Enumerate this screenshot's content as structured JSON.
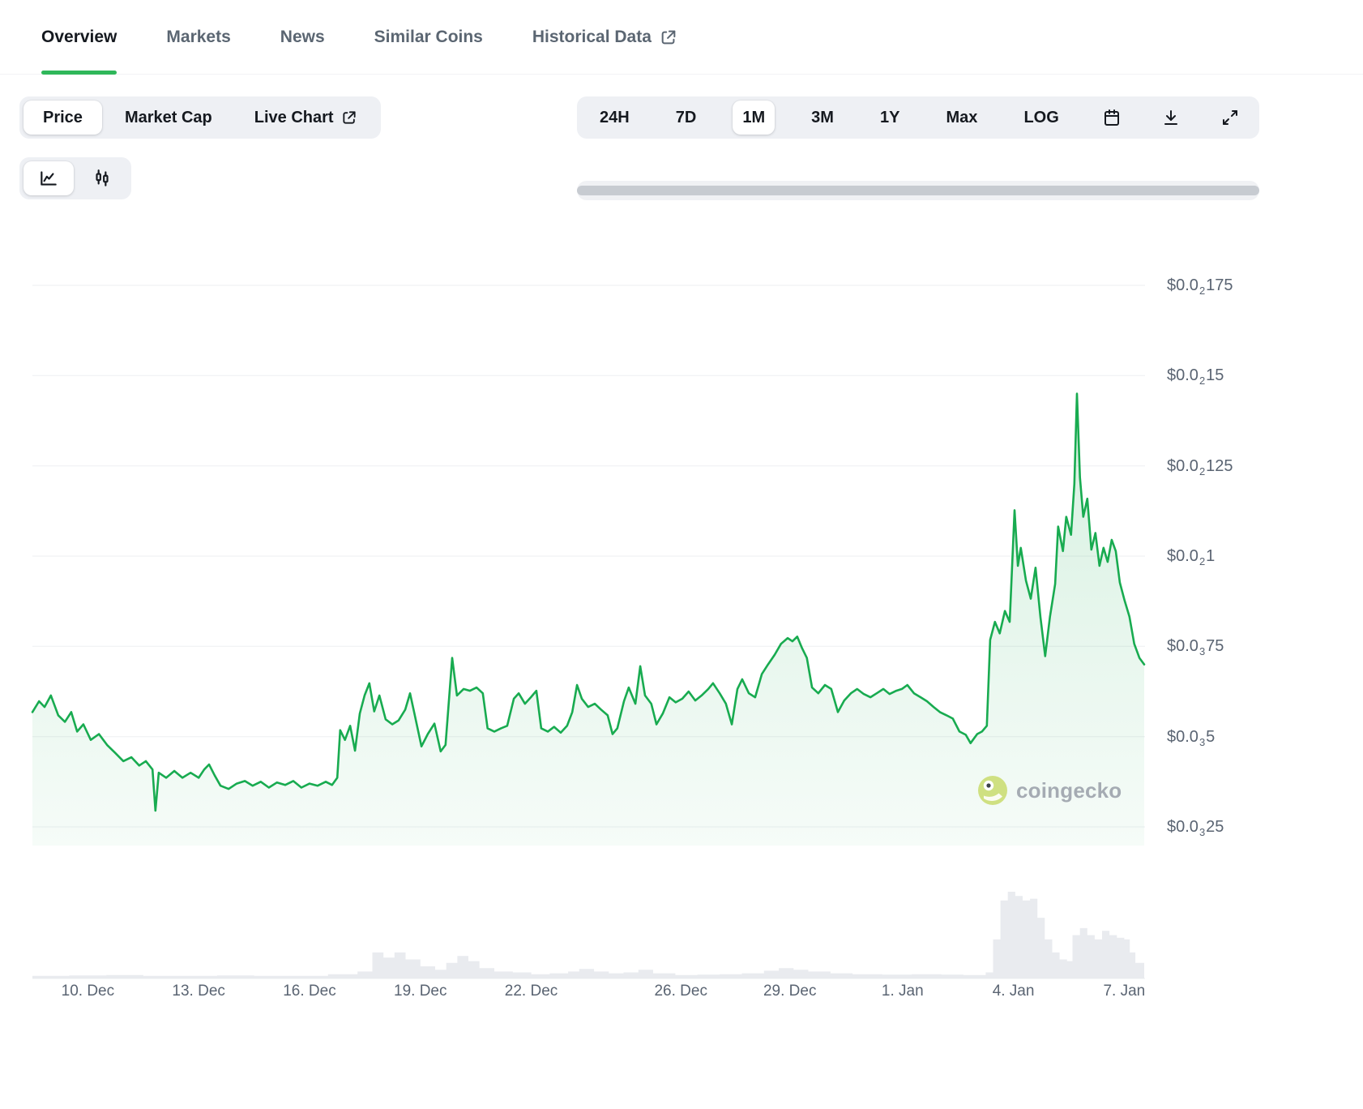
{
  "tabs": [
    {
      "label": "Overview",
      "active": true
    },
    {
      "label": "Markets",
      "active": false
    },
    {
      "label": "News",
      "active": false
    },
    {
      "label": "Similar Coins",
      "active": false
    },
    {
      "label": "Historical Data",
      "active": false,
      "external_link": true
    }
  ],
  "toolbar": {
    "metric_buttons": [
      {
        "label": "Price",
        "active": true
      },
      {
        "label": "Market Cap",
        "active": false
      },
      {
        "label": "Live Chart",
        "active": false,
        "external_link": true
      }
    ],
    "range_buttons": [
      "24H",
      "7D",
      "1M",
      "3M",
      "1Y",
      "Max",
      "LOG"
    ],
    "active_range": "1M",
    "icon_buttons": [
      "calendar",
      "download",
      "fullscreen"
    ]
  },
  "chart_type_toggle": {
    "options": [
      "line-chart",
      "candlestick-chart"
    ],
    "active": "line-chart"
  },
  "watermark": {
    "text": "coingecko"
  },
  "colors": {
    "accent_green": "#2fb75a",
    "line_green": "#18ab50",
    "gridline": "#edeff2",
    "axis_label": "#5a6472",
    "volume": "#e9ebef",
    "toolbar_bg": "#eef0f4",
    "active_pill": "#ffffff",
    "text_dark": "#15191f",
    "text_muted": "#5b6672",
    "scrollbar_thumb": "#c7cbd1",
    "scrollbar_track": "#f0f1f4",
    "watermark": "#a5abb3",
    "tab_border": "#f2f3f5"
  },
  "chart_data": {
    "type": "line",
    "title": "",
    "selected_range": "1M",
    "scale": "linear",
    "grid": "horizontal",
    "legend": "none",
    "x_domain_days": 30.09,
    "y_domain": [
      0.00025,
      0.00175
    ],
    "y_ticks": [
      {
        "value": 0.00175,
        "prefix": "$0.0",
        "sub": "2",
        "digits": "175"
      },
      {
        "value": 0.0015,
        "prefix": "$0.0",
        "sub": "2",
        "digits": "15"
      },
      {
        "value": 0.00125,
        "prefix": "$0.0",
        "sub": "2",
        "digits": "125"
      },
      {
        "value": 0.001,
        "prefix": "$0.0",
        "sub": "2",
        "digits": "1"
      },
      {
        "value": 0.00075,
        "prefix": "$0.0",
        "sub": "3",
        "digits": "75"
      },
      {
        "value": 0.0005,
        "prefix": "$0.0",
        "sub": "3",
        "digits": "5"
      },
      {
        "value": 0.00025,
        "prefix": "$0.0",
        "sub": "3",
        "digits": "25"
      }
    ],
    "x_ticks": [
      {
        "label": "10. Dec",
        "day": 1.5
      },
      {
        "label": "13. Dec",
        "day": 4.5
      },
      {
        "label": "16. Dec",
        "day": 7.5
      },
      {
        "label": "19. Dec",
        "day": 10.5
      },
      {
        "label": "22. Dec",
        "day": 13.5
      },
      {
        "label": "26. Dec",
        "day": 17.55
      },
      {
        "label": "29. Dec",
        "day": 20.5
      },
      {
        "label": "1. Jan",
        "day": 23.55
      },
      {
        "label": "4. Jan",
        "day": 26.55
      },
      {
        "label": "7. Jan",
        "day": 29.55
      }
    ],
    "series": [
      {
        "name": "Price (USD)",
        "points": [
          [
            0,
            0.000568
          ],
          [
            0.18,
            0.000598
          ],
          [
            0.33,
            0.000582
          ],
          [
            0.5,
            0.000614
          ],
          [
            0.7,
            0.000559
          ],
          [
            0.88,
            0.000541
          ],
          [
            1.05,
            0.000568
          ],
          [
            1.21,
            0.000514
          ],
          [
            1.38,
            0.000534
          ],
          [
            1.58,
            0.000491
          ],
          [
            1.8,
            0.000507
          ],
          [
            2.02,
            0.000477
          ],
          [
            2.24,
            0.000455
          ],
          [
            2.46,
            0.000432
          ],
          [
            2.68,
            0.000443
          ],
          [
            2.89,
            0.00042
          ],
          [
            3.07,
            0.000432
          ],
          [
            3.25,
            0.000409
          ],
          [
            3.33,
            0.000295
          ],
          [
            3.42,
            0.0004
          ],
          [
            3.62,
            0.000386
          ],
          [
            3.84,
            0.000405
          ],
          [
            4.06,
            0.000386
          ],
          [
            4.28,
            0.0004
          ],
          [
            4.5,
            0.000386
          ],
          [
            4.65,
            0.000409
          ],
          [
            4.78,
            0.000423
          ],
          [
            4.93,
            0.000393
          ],
          [
            5.09,
            0.000364
          ],
          [
            5.31,
            0.000355
          ],
          [
            5.53,
            0.00037
          ],
          [
            5.75,
            0.000377
          ],
          [
            5.96,
            0.000364
          ],
          [
            6.18,
            0.000375
          ],
          [
            6.4,
            0.000359
          ],
          [
            6.62,
            0.000373
          ],
          [
            6.84,
            0.000366
          ],
          [
            7.06,
            0.000377
          ],
          [
            7.28,
            0.000359
          ],
          [
            7.5,
            0.00037
          ],
          [
            7.72,
            0.000364
          ],
          [
            7.94,
            0.000375
          ],
          [
            8.11,
            0.000366
          ],
          [
            8.25,
            0.000386
          ],
          [
            8.33,
            0.000518
          ],
          [
            8.46,
            0.000491
          ],
          [
            8.6,
            0.00053
          ],
          [
            8.73,
            0.000461
          ],
          [
            8.86,
            0.000564
          ],
          [
            8.99,
            0.000614
          ],
          [
            9.12,
            0.000648
          ],
          [
            9.25,
            0.00057
          ],
          [
            9.39,
            0.000614
          ],
          [
            9.56,
            0.000548
          ],
          [
            9.74,
            0.000534
          ],
          [
            9.91,
            0.000545
          ],
          [
            10.09,
            0.000575
          ],
          [
            10.22,
            0.00062
          ],
          [
            10.35,
            0.000559
          ],
          [
            10.53,
            0.000473
          ],
          [
            10.7,
            0.000507
          ],
          [
            10.88,
            0.000536
          ],
          [
            11.05,
            0.000459
          ],
          [
            11.18,
            0.000477
          ],
          [
            11.36,
            0.000718
          ],
          [
            11.49,
            0.000614
          ],
          [
            11.67,
            0.000632
          ],
          [
            11.84,
            0.000627
          ],
          [
            12.02,
            0.000636
          ],
          [
            12.19,
            0.00062
          ],
          [
            12.32,
            0.000523
          ],
          [
            12.5,
            0.000514
          ],
          [
            12.68,
            0.000523
          ],
          [
            12.85,
            0.00053
          ],
          [
            13.03,
            0.000605
          ],
          [
            13.16,
            0.00062
          ],
          [
            13.33,
            0.000591
          ],
          [
            13.49,
            0.000609
          ],
          [
            13.64,
            0.000627
          ],
          [
            13.77,
            0.000523
          ],
          [
            13.95,
            0.000514
          ],
          [
            14.12,
            0.000527
          ],
          [
            14.3,
            0.000511
          ],
          [
            14.47,
            0.00053
          ],
          [
            14.61,
            0.000568
          ],
          [
            14.74,
            0.000643
          ],
          [
            14.87,
            0.000605
          ],
          [
            15.04,
            0.000582
          ],
          [
            15.22,
            0.000591
          ],
          [
            15.39,
            0.000575
          ],
          [
            15.57,
            0.000559
          ],
          [
            15.7,
            0.000507
          ],
          [
            15.83,
            0.000523
          ],
          [
            16.01,
            0.000598
          ],
          [
            16.14,
            0.000636
          ],
          [
            16.32,
            0.000591
          ],
          [
            16.45,
            0.000695
          ],
          [
            16.58,
            0.000614
          ],
          [
            16.75,
            0.000591
          ],
          [
            16.89,
            0.000534
          ],
          [
            17.06,
            0.000564
          ],
          [
            17.24,
            0.000609
          ],
          [
            17.41,
            0.000595
          ],
          [
            17.59,
            0.000605
          ],
          [
            17.76,
            0.000625
          ],
          [
            17.94,
            0.0006
          ],
          [
            18.11,
            0.000614
          ],
          [
            18.29,
            0.000632
          ],
          [
            18.42,
            0.000648
          ],
          [
            18.6,
            0.00062
          ],
          [
            18.77,
            0.000591
          ],
          [
            18.93,
            0.000534
          ],
          [
            19.08,
            0.000632
          ],
          [
            19.21,
            0.000659
          ],
          [
            19.39,
            0.00062
          ],
          [
            19.56,
            0.000609
          ],
          [
            19.74,
            0.000673
          ],
          [
            19.91,
            0.0007
          ],
          [
            20.09,
            0.000727
          ],
          [
            20.26,
            0.000757
          ],
          [
            20.44,
            0.000773
          ],
          [
            20.57,
            0.000764
          ],
          [
            20.7,
            0.000777
          ],
          [
            20.83,
            0.000745
          ],
          [
            20.96,
            0.000718
          ],
          [
            21.1,
            0.000636
          ],
          [
            21.27,
            0.00062
          ],
          [
            21.45,
            0.000643
          ],
          [
            21.62,
            0.000632
          ],
          [
            21.8,
            0.000568
          ],
          [
            21.97,
            0.0006
          ],
          [
            22.15,
            0.00062
          ],
          [
            22.32,
            0.000632
          ],
          [
            22.5,
            0.000618
          ],
          [
            22.68,
            0.000609
          ],
          [
            22.85,
            0.00062
          ],
          [
            23.03,
            0.000632
          ],
          [
            23.2,
            0.000618
          ],
          [
            23.38,
            0.000627
          ],
          [
            23.53,
            0.000632
          ],
          [
            23.68,
            0.000643
          ],
          [
            23.86,
            0.00062
          ],
          [
            24.04,
            0.000609
          ],
          [
            24.21,
            0.000598
          ],
          [
            24.39,
            0.000582
          ],
          [
            24.56,
            0.000568
          ],
          [
            24.74,
            0.000559
          ],
          [
            24.91,
            0.00055
          ],
          [
            25.09,
            0.000514
          ],
          [
            25.26,
            0.000505
          ],
          [
            25.39,
            0.000482
          ],
          [
            25.57,
            0.000507
          ],
          [
            25.7,
            0.000514
          ],
          [
            25.83,
            0.00053
          ],
          [
            25.92,
            0.000768
          ],
          [
            26.05,
            0.000818
          ],
          [
            26.18,
            0.000786
          ],
          [
            26.32,
            0.000848
          ],
          [
            26.45,
            0.000818
          ],
          [
            26.58,
            0.001127
          ],
          [
            26.67,
            0.000973
          ],
          [
            26.75,
            0.001023
          ],
          [
            26.89,
            0.000932
          ],
          [
            27.02,
            0.000882
          ],
          [
            27.15,
            0.000968
          ],
          [
            27.28,
            0.000832
          ],
          [
            27.41,
            0.000723
          ],
          [
            27.54,
            0.000832
          ],
          [
            27.68,
            0.000923
          ],
          [
            27.76,
            0.001082
          ],
          [
            27.89,
            0.001014
          ],
          [
            27.98,
            0.001109
          ],
          [
            28.11,
            0.001059
          ],
          [
            28.2,
            0.0012
          ],
          [
            28.27,
            0.00145
          ],
          [
            28.35,
            0.001218
          ],
          [
            28.44,
            0.001109
          ],
          [
            28.55,
            0.001159
          ],
          [
            28.66,
            0.001018
          ],
          [
            28.77,
            0.001064
          ],
          [
            28.88,
            0.000973
          ],
          [
            28.99,
            0.001023
          ],
          [
            29.1,
            0.000984
          ],
          [
            29.21,
            0.001045
          ],
          [
            29.32,
            0.001014
          ],
          [
            29.43,
            0.000927
          ],
          [
            29.56,
            0.000877
          ],
          [
            29.69,
            0.000832
          ],
          [
            29.82,
            0.000757
          ],
          [
            29.96,
            0.000718
          ],
          [
            30.09,
            0.0007
          ]
        ]
      }
    ],
    "volume_relative": {
      "name": "Volume (relative 0-1, no axis shown)",
      "points": [
        [
          0,
          0.03
        ],
        [
          1,
          0.035
        ],
        [
          2,
          0.04
        ],
        [
          3,
          0.03
        ],
        [
          4,
          0.03
        ],
        [
          5,
          0.035
        ],
        [
          6,
          0.03
        ],
        [
          7,
          0.03
        ],
        [
          8,
          0.05
        ],
        [
          8.8,
          0.08
        ],
        [
          9.2,
          0.3
        ],
        [
          9.5,
          0.24
        ],
        [
          9.8,
          0.3
        ],
        [
          10.1,
          0.22
        ],
        [
          10.5,
          0.14
        ],
        [
          10.9,
          0.1
        ],
        [
          11.2,
          0.18
        ],
        [
          11.5,
          0.26
        ],
        [
          11.8,
          0.2
        ],
        [
          12.1,
          0.12
        ],
        [
          12.5,
          0.08
        ],
        [
          13,
          0.07
        ],
        [
          13.5,
          0.05
        ],
        [
          14,
          0.06
        ],
        [
          14.5,
          0.08
        ],
        [
          14.8,
          0.11
        ],
        [
          15.2,
          0.08
        ],
        [
          15.6,
          0.06
        ],
        [
          16,
          0.07
        ],
        [
          16.4,
          0.1
        ],
        [
          16.8,
          0.06
        ],
        [
          17.4,
          0.04
        ],
        [
          18,
          0.045
        ],
        [
          18.6,
          0.05
        ],
        [
          19.2,
          0.06
        ],
        [
          19.8,
          0.09
        ],
        [
          20.2,
          0.12
        ],
        [
          20.6,
          0.1
        ],
        [
          21,
          0.08
        ],
        [
          21.6,
          0.06
        ],
        [
          22.2,
          0.05
        ],
        [
          23,
          0.045
        ],
        [
          23.8,
          0.05
        ],
        [
          24.6,
          0.045
        ],
        [
          25.2,
          0.04
        ],
        [
          25.8,
          0.07
        ],
        [
          26,
          0.45
        ],
        [
          26.2,
          0.9
        ],
        [
          26.4,
          1
        ],
        [
          26.6,
          0.95
        ],
        [
          26.8,
          0.9
        ],
        [
          27,
          0.92
        ],
        [
          27.2,
          0.7
        ],
        [
          27.4,
          0.45
        ],
        [
          27.6,
          0.3
        ],
        [
          27.8,
          0.22
        ],
        [
          28,
          0.2
        ],
        [
          28.15,
          0.5
        ],
        [
          28.35,
          0.58
        ],
        [
          28.55,
          0.5
        ],
        [
          28.75,
          0.45
        ],
        [
          28.95,
          0.55
        ],
        [
          29.15,
          0.5
        ],
        [
          29.35,
          0.47
        ],
        [
          29.55,
          0.45
        ],
        [
          29.7,
          0.3
        ],
        [
          29.85,
          0.18
        ],
        [
          30.09,
          0.12
        ]
      ]
    }
  }
}
